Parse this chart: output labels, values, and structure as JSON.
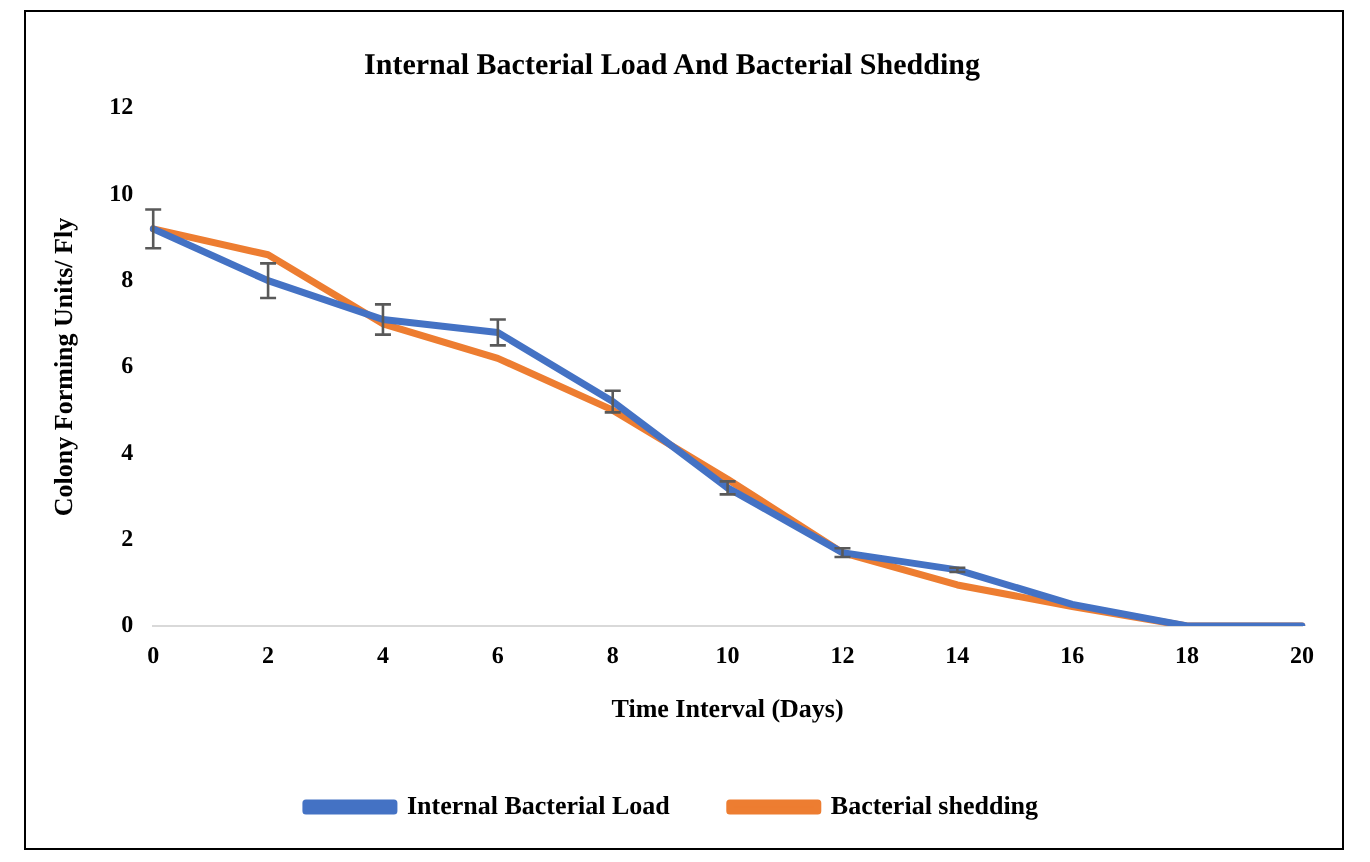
{
  "chart_data": {
    "type": "line",
    "title": "Internal Bacterial Load And Bacterial Shedding",
    "xlabel": "Time Interval (Days)",
    "ylabel": "Colony Forming Units/ Fly",
    "categories": [
      "0",
      "2",
      "4",
      "6",
      "8",
      "10",
      "12",
      "14",
      "16",
      "18",
      "20"
    ],
    "series": [
      {
        "name": "Internal Bacterial Load",
        "color": "#4472c4",
        "values": [
          9.2,
          8.0,
          7.1,
          6.8,
          5.2,
          3.2,
          1.7,
          1.3,
          0.5,
          0,
          0
        ],
        "errors": [
          0.45,
          0.4,
          0.35,
          0.3,
          0.25,
          0.15,
          0.1,
          0.05,
          null,
          null,
          null
        ]
      },
      {
        "name": "Bacterial shedding",
        "color": "#ed7d31",
        "values": [
          9.2,
          8.6,
          7.0,
          6.2,
          5.0,
          3.4,
          1.7,
          0.95,
          0.45,
          0,
          0
        ]
      }
    ],
    "ylim": [
      0,
      12
    ],
    "yticks": [
      0,
      2,
      4,
      6,
      8,
      10,
      12
    ],
    "grid": false,
    "legend": "bottom",
    "marker": "none",
    "line_style": "solid"
  }
}
